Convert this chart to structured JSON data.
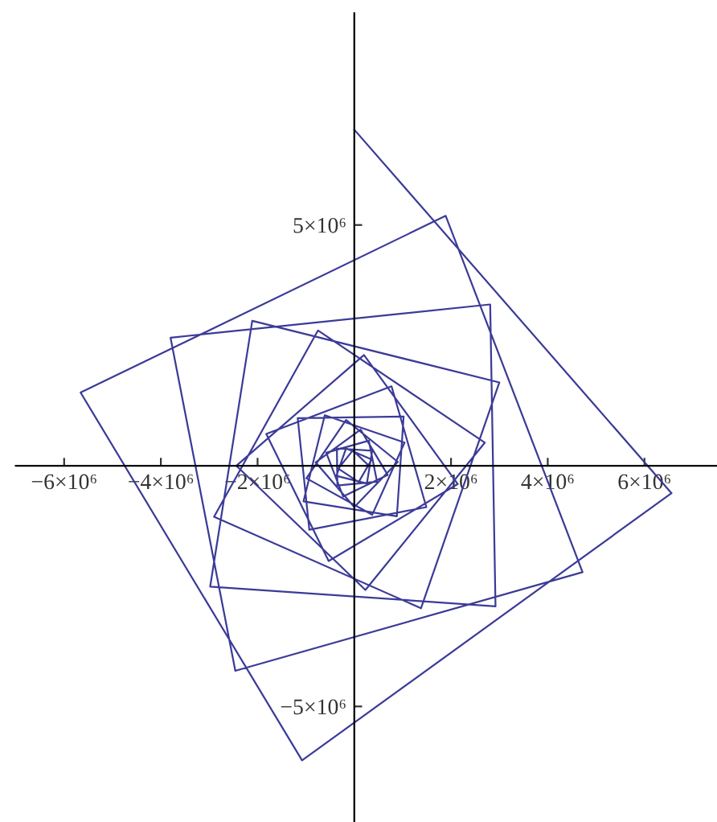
{
  "chart_data": {
    "type": "line",
    "color": "#3b3b98",
    "x": [
      300000.0,
      -30000.0,
      -330000.0,
      90000.0,
      360000.0,
      -170000.0,
      -370000.0,
      260000.0,
      370000.0,
      -360000.0,
      -350000.0,
      470000.0,
      300000.0,
      -580000.0,
      -230000.0,
      690000.0,
      130000.0,
      -800000.0,
      0,
      900000.0,
      -170000.0,
      -990000.0,
      370000.0,
      1040000.0,
      -610000.0,
      -1050000.0,
      880000.0,
      1020000.0,
      -1170000.0,
      -930000.0,
      1490000.0,
      770000.0,
      -1820000.0,
      -530000.0,
      2140000.0,
      200000.0,
      -2440000.0,
      230000.0,
      2700000.0,
      -750000.0,
      -2900000.0,
      1380000.0,
      3000000.0,
      -2110000.0,
      -2980000.0,
      2920000.0,
      2810000.0,
      -3800000.0,
      -2460000.0,
      4720000.0,
      1890000.0,
      -5660000.0,
      -1080000.0,
      6560000.0,
      0
    ],
    "values": [
      0,
      320000.0,
      -60000.0,
      -340000.0,
      130000.0,
      360000.0,
      -210000.0,
      -370000.0,
      310000.0,
      360000.0,
      -410000.0,
      -330000.0,
      520000.0,
      270000.0,
      -640000.0,
      -190000.0,
      750000.0,
      70000.0,
      -860000.0,
      80000.0,
      950000.0,
      -260000.0,
      -1020000.0,
      480000.0,
      1050000.0,
      -740000.0,
      -1050000.0,
      1020000.0,
      990000.0,
      -1330000.0,
      -860000.0,
      1650000.0,
      660000.0,
      -1980000.0,
      -380000.0,
      2300000.0,
      0,
      -2580000.0,
      480000.0,
      2810000.0,
      -1060000.0,
      -2960000.0,
      1730000.0,
      3010000.0,
      -2510000.0,
      -2920000.0,
      3350000.0,
      2660000.0,
      -4260000.0,
      -2210000.0,
      5190000.0,
      1520000.0,
      -6120000.0,
      -570000.0,
      6980000.0
    ],
    "xlim": [
      -7000000,
      7500000
    ],
    "ylim": [
      -7400000,
      9400000
    ],
    "xticks": [
      {
        "value": -6000000,
        "label": "−6×10⁶"
      },
      {
        "value": -4000000,
        "label": "−4×10⁶"
      },
      {
        "value": -2000000,
        "label": "−2×10⁶"
      },
      {
        "value": 2000000,
        "label": "2×10⁶"
      },
      {
        "value": 4000000,
        "label": "4×10⁶"
      },
      {
        "value": 6000000,
        "label": "6×10⁶"
      }
    ],
    "yticks": [
      {
        "value": -5000000,
        "label": "−5×10⁶"
      },
      {
        "value": 5000000,
        "label": "5×10⁶"
      }
    ],
    "grid": false,
    "legend": false,
    "marker": "none",
    "line_style": "solid"
  }
}
